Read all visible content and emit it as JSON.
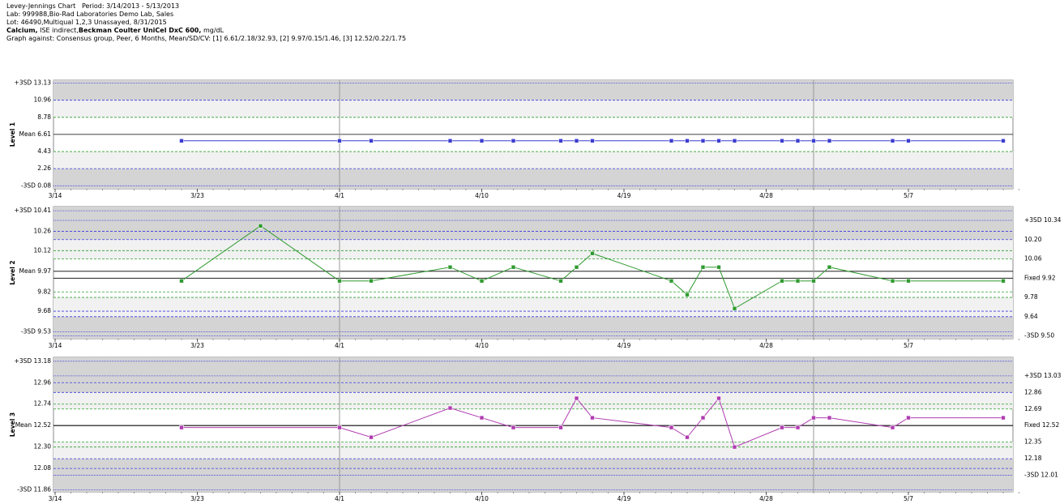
{
  "header": {
    "line1": "Levey-Jennings Chart   Period: 3/14/2013 - 5/13/2013",
    "line2": "Lab: 999988,Bio-Rad Laboratories Demo Lab, Sales",
    "line3": "Lot: 46490,Multiqual 1,2,3 Unassayed, 8/31/2015",
    "line4": [
      "Calcium,",
      " ISE indirect,",
      "Beckman Coulter UniCel DxC 600,",
      " mg/dL"
    ],
    "line5": "Graph against: Consensus group, Peer, 6 Months, Mean/SD/CV: [1] 6.61/2.18/32.93, [2] 9.97/0.15/1.46, [3] 12.52/0.22/1.75"
  },
  "chart_data": [
    {
      "type": "line",
      "y_label": "Level 1",
      "x": [
        "3/22",
        "4/1",
        "4/3",
        "4/8",
        "4/10",
        "4/12",
        "4/15",
        "4/16",
        "4/17",
        "4/22",
        "4/23",
        "4/24",
        "4/25",
        "4/26",
        "4/29",
        "4/30",
        "5/1",
        "5/2",
        "5/6",
        "5/7",
        "5/13"
      ],
      "series": [
        {
          "color": "#3a3ad0",
          "values": [
            5.8,
            5.8,
            5.8,
            5.8,
            5.8,
            5.8,
            5.8,
            5.8,
            5.8,
            5.8,
            5.8,
            5.8,
            5.8,
            5.8,
            5.8,
            5.8,
            5.8,
            5.8,
            5.8,
            5.8,
            5.8
          ]
        }
      ],
      "xlim": [
        "3/14",
        "5/13"
      ],
      "xticks": [
        "3/14",
        "3/23",
        "4/1",
        "4/10",
        "4/19",
        "4/28",
        "5/7"
      ],
      "ylim": [
        -0.3,
        13.5
      ],
      "yticks": [
        {
          "value": 13.13,
          "label": "+3SD 13.13"
        },
        10.96,
        8.78,
        {
          "value": 6.61,
          "label": "Mean 6.61"
        },
        4.43,
        2.26,
        {
          "value": 0.08,
          "label": "-3SD 0.08"
        }
      ]
    },
    {
      "type": "line",
      "y_label": "Level 2",
      "x": [
        "3/22",
        "3/27",
        "4/1",
        "4/3",
        "4/8",
        "4/10",
        "4/12",
        "4/15",
        "4/16",
        "4/17",
        "4/22",
        "4/23",
        "4/24",
        "4/25",
        "4/26",
        "4/29",
        "4/30",
        "5/1",
        "5/2",
        "5/6",
        "5/7",
        "5/13"
      ],
      "series": [
        {
          "color": "#2f9a2f",
          "values": [
            9.9,
            10.3,
            9.9,
            9.9,
            10.0,
            9.9,
            10.0,
            9.9,
            10.0,
            10.1,
            9.9,
            9.8,
            10.0,
            10.0,
            9.7,
            9.9,
            9.9,
            9.9,
            10.0,
            9.9,
            9.9,
            9.9
          ]
        }
      ],
      "xlim": [
        "3/14",
        "5/13"
      ],
      "xticks": [
        "3/14",
        "3/23",
        "4/1",
        "4/10",
        "4/19",
        "4/28",
        "5/7"
      ],
      "ylim": [
        9.48,
        10.44
      ],
      "yticks": [
        {
          "value": 10.41,
          "label": "+3SD 10.41"
        },
        10.26,
        10.12,
        {
          "value": 9.97,
          "label": "Mean 9.97"
        },
        9.82,
        9.68,
        {
          "value": 9.53,
          "label": "-3SD 9.53"
        }
      ],
      "y2lim": [
        9.48,
        10.44
      ],
      "y2ticks": [
        {
          "value": 10.34,
          "label": "+3SD 10.34"
        },
        {
          "value": 10.2,
          "label": "10.20"
        },
        10.06,
        {
          "value": 9.92,
          "label": "Fixed 9.92"
        },
        9.78,
        9.64,
        {
          "value": 9.5,
          "label": "-3SD 9.50"
        }
      ]
    },
    {
      "type": "line",
      "y_label": "Level 3",
      "x": [
        "3/22",
        "4/1",
        "4/3",
        "4/8",
        "4/10",
        "4/12",
        "4/15",
        "4/16",
        "4/17",
        "4/22",
        "4/23",
        "4/24",
        "4/25",
        "4/26",
        "4/29",
        "4/30",
        "5/1",
        "5/2",
        "5/6",
        "5/7",
        "5/13"
      ],
      "series": [
        {
          "color": "#b03cb0",
          "values": [
            12.5,
            12.5,
            12.4,
            12.7,
            12.6,
            12.5,
            12.5,
            12.8,
            12.6,
            12.5,
            12.4,
            12.6,
            12.8,
            12.3,
            12.5,
            12.5,
            12.6,
            12.6,
            12.5,
            12.6,
            12.6
          ]
        }
      ],
      "xlim": [
        "3/14",
        "5/13"
      ],
      "xticks": [
        "3/14",
        "3/23",
        "4/1",
        "4/10",
        "4/19",
        "4/28",
        "5/7"
      ],
      "ylim": [
        11.84,
        13.22
      ],
      "yticks": [
        {
          "value": 13.18,
          "label": "+3SD 13.18"
        },
        12.96,
        12.74,
        {
          "value": 12.52,
          "label": "Mean 12.52"
        },
        {
          "value": 12.3,
          "label": "12.30"
        },
        12.08,
        {
          "value": 11.86,
          "label": "-3SD 11.86"
        }
      ],
      "y2lim": [
        11.84,
        13.22
      ],
      "y2ticks": [
        {
          "value": 13.03,
          "label": "+3SD 13.03"
        },
        12.86,
        12.69,
        {
          "value": 12.52,
          "label": "Fixed 12.52"
        },
        12.35,
        12.18,
        {
          "value": 12.01,
          "label": "-3SD 12.01"
        }
      ]
    }
  ]
}
